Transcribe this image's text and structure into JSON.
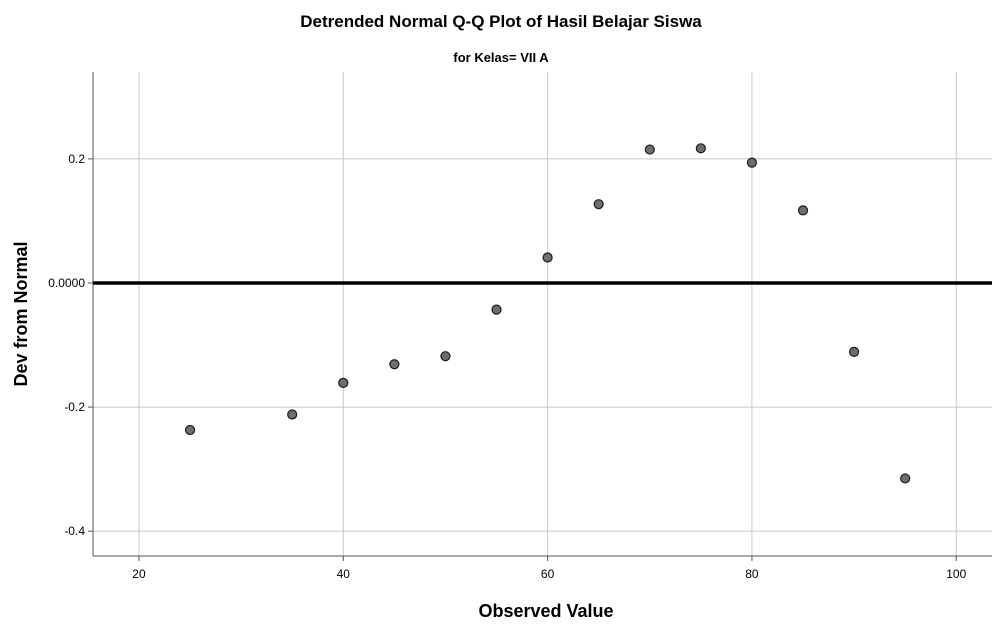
{
  "chart_data": {
    "type": "scatter",
    "title": "Detrended Normal Q-Q Plot of Hasil Belajar Siswa",
    "subtitle": "for Kelas= VII A",
    "xlabel": "Observed Value",
    "ylabel": "Dev from Normal",
    "xlim": [
      15.5,
      103.5
    ],
    "ylim": [
      -0.44,
      0.34
    ],
    "xticks": [
      20,
      40,
      60,
      80,
      100
    ],
    "xtick_labels": [
      "20",
      "40",
      "60",
      "80",
      "100"
    ],
    "yticks": [
      0.2,
      0.0,
      -0.2,
      -0.4
    ],
    "ytick_labels": [
      "0.2",
      "0.0000",
      "-0.2",
      "-0.4"
    ],
    "grid": true,
    "reference_line": 0,
    "colors": {
      "point_fill": "#6e6e6e",
      "point_stroke": "#1a1a1a",
      "grid": "#c8c8c8",
      "reference_line": "#000000"
    },
    "points": [
      {
        "x": 25,
        "y": -0.237
      },
      {
        "x": 35,
        "y": -0.212
      },
      {
        "x": 40,
        "y": -0.161
      },
      {
        "x": 45,
        "y": -0.131
      },
      {
        "x": 50,
        "y": -0.118
      },
      {
        "x": 55,
        "y": -0.043
      },
      {
        "x": 60,
        "y": 0.041
      },
      {
        "x": 65,
        "y": 0.127
      },
      {
        "x": 70,
        "y": 0.215
      },
      {
        "x": 75,
        "y": 0.217
      },
      {
        "x": 80,
        "y": 0.194
      },
      {
        "x": 85,
        "y": 0.117
      },
      {
        "x": 90,
        "y": -0.111
      },
      {
        "x": 95,
        "y": -0.315
      }
    ]
  }
}
